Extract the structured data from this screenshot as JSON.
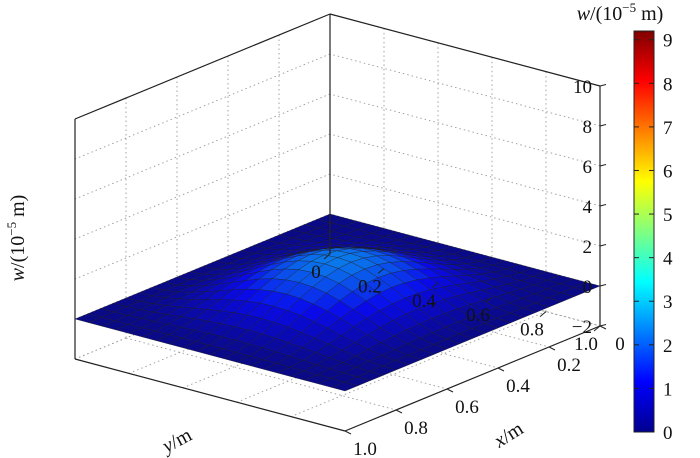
{
  "chart_data": {
    "type": "surface",
    "title": "",
    "zlabel": {
      "var": "w",
      "unit_open": "/(10",
      "exp": "−5",
      "unit_close": " m)"
    },
    "xlabel": {
      "var": "x",
      "unit": "/m"
    },
    "ylabel": {
      "var": "y",
      "unit": "/m"
    },
    "colorbar_label": {
      "var": "w",
      "unit_open": "/(10",
      "exp": "−5",
      "unit_close": " m)"
    },
    "x_ticks": [
      "0",
      "0.2",
      "0.4",
      "0.6",
      "0.8",
      "1.0"
    ],
    "y_ticks": [
      "0",
      "0.2",
      "0.4",
      "0.6",
      "0.8",
      "1.0"
    ],
    "z_ticks": [
      "−2",
      "0",
      "2",
      "4",
      "6",
      "8",
      "10"
    ],
    "colorbar_ticks": [
      "0",
      "1",
      "2",
      "3",
      "4",
      "5",
      "6",
      "7",
      "8",
      "9"
    ],
    "xlim": [
      0,
      1
    ],
    "ylim": [
      0,
      1
    ],
    "zlim": [
      -2,
      10
    ],
    "clim": [
      0,
      9.2
    ],
    "colormap": "jet",
    "grid": true,
    "surface": {
      "function": "peak * 0.0625 * (1 - cos(2*pi*x)) * (1 - cos(2*pi*y))",
      "peak": 9.0,
      "grid_lines": 20
    },
    "colorbar_placement": "right"
  }
}
